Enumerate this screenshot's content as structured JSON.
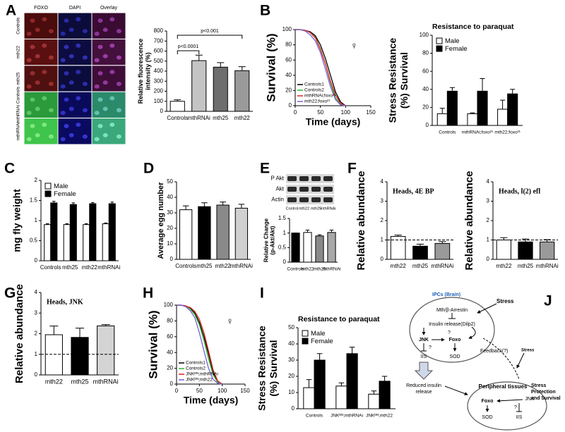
{
  "chart_data": [
    {
      "type": "bar",
      "panel": "A",
      "ylabel": [
        "Relative fluorescence",
        "intensity (%)"
      ],
      "categories": [
        "Controls",
        "mthRNAi",
        "mth25",
        "mth22"
      ],
      "series": [
        {
          "colors": [
            "#ffffff",
            "#c4c4c4",
            "#6e6e6e",
            "#9a9a9a"
          ],
          "values": [
            100,
            505,
            440,
            405
          ],
          "errors": [
            15,
            55,
            45,
            40
          ]
        }
      ],
      "ylim": [
        0,
        800
      ],
      "yticks": [
        0,
        100,
        200,
        300,
        400,
        500,
        600,
        700,
        800
      ],
      "annotations": [
        {
          "text": "p<0.0001",
          "span": [
            "Controls",
            "mthRNAi"
          ]
        },
        {
          "text": "p<0.001",
          "span": [
            "Controls",
            "mth22"
          ]
        }
      ]
    },
    {
      "type": "line",
      "panel": "B",
      "ylabel": "Survival (%)",
      "xlabel": "Time (days)",
      "symbol": "♀",
      "x": [
        0,
        10,
        20,
        30,
        40,
        50,
        60,
        70,
        80,
        90,
        100
      ],
      "series": [
        {
          "name": "Controls1",
          "color": "#000000",
          "values": [
            100,
            100,
            99,
            97,
            92,
            80,
            62,
            40,
            18,
            5,
            0
          ]
        },
        {
          "name": "Controls2",
          "color": "#2eb82e",
          "values": [
            100,
            100,
            99,
            96,
            90,
            75,
            55,
            30,
            10,
            2,
            0
          ]
        },
        {
          "name": "mthRNAi;foxo²¹",
          "color": "#e02020",
          "values": [
            100,
            100,
            99,
            96,
            89,
            74,
            55,
            32,
            14,
            3,
            0
          ]
        },
        {
          "name": "mth22;foxo²¹",
          "color": "#7b5fd6",
          "values": [
            100,
            100,
            98,
            93,
            85,
            70,
            48,
            25,
            8,
            1,
            0
          ]
        }
      ],
      "xlim": [
        0,
        150
      ],
      "xticks": [
        0,
        50,
        100,
        150
      ],
      "ylim": [
        0,
        100
      ],
      "yticks": [
        0,
        20,
        40,
        60,
        80,
        100
      ],
      "legend": "lower left"
    },
    {
      "type": "bar",
      "title": "Resistance to paraquat",
      "ylabel": [
        "Stress Resistance",
        "(%) Survival"
      ],
      "categories": [
        "Controls",
        "mthRNAi;foxo²¹",
        "mth22;foxo²¹"
      ],
      "series": [
        {
          "name": "Male",
          "color": "#ffffff",
          "values": [
            13,
            13,
            18
          ],
          "errors": [
            6,
            1,
            10
          ]
        },
        {
          "name": "Female",
          "color": "#000000",
          "values": [
            38,
            38,
            35
          ],
          "errors": [
            4,
            14,
            5
          ]
        }
      ],
      "ylim": [
        0,
        100
      ],
      "yticks": [
        0,
        20,
        40,
        60,
        80,
        100
      ],
      "legend": "upper left"
    },
    {
      "type": "bar",
      "panel": "C",
      "ylabel": "mg fly weight",
      "categories": [
        "Controls",
        "mth25",
        "mth22",
        "mthRNAi"
      ],
      "series": [
        {
          "name": "Male",
          "color": "#ffffff",
          "values": [
            0.9,
            0.9,
            0.9,
            0.92
          ],
          "errors": [
            0.02,
            0.02,
            0.02,
            0.02
          ]
        },
        {
          "name": "Female",
          "color": "#000000",
          "values": [
            1.44,
            1.4,
            1.42,
            1.42
          ],
          "errors": [
            0.04,
            0.04,
            0.03,
            0.04
          ]
        }
      ],
      "ylim": [
        0,
        2
      ],
      "yticks": [
        0,
        0.5,
        1,
        1.5,
        2
      ],
      "legend": "upper left"
    },
    {
      "type": "bar",
      "panel": "D",
      "ylabel": "Average egg number",
      "categories": [
        "Controls",
        "mth25",
        "mth22",
        "mthRNAi"
      ],
      "series": [
        {
          "colors": [
            "#ffffff",
            "#000000",
            "#8a8a8a",
            "#d0d0d0"
          ],
          "values": [
            32,
            34,
            35,
            33
          ],
          "errors": [
            2.5,
            2.5,
            2,
            2.5
          ]
        }
      ],
      "ylim": [
        0,
        50
      ],
      "yticks": [
        0,
        10,
        20,
        30,
        40,
        50
      ]
    },
    {
      "type": "bar",
      "panel": "E",
      "ylabel": [
        "Relative Change",
        "(p-Akt/Akt)"
      ],
      "categories": [
        "Controls",
        "mth22",
        "mth25",
        "mthRNAi"
      ],
      "series": [
        {
          "colors": [
            "#000000",
            "#ffffff",
            "#8a8a8a",
            "#a8a8a8"
          ],
          "values": [
            1,
            1.02,
            0.9,
            1.02
          ],
          "errors": [
            0,
            0.08,
            0.04,
            0.08
          ]
        }
      ],
      "ylim": [
        0,
        1.5
      ],
      "yticks": [
        0,
        0.5,
        1,
        1.5
      ]
    },
    {
      "type": "bar",
      "panel": "F",
      "title": "Heads, 4E BP",
      "ylabel": "Relative abundance",
      "categories": [
        "mth22",
        "mth25",
        "mthRNAi"
      ],
      "series": [
        {
          "colors": [
            "#ffffff",
            "#000000",
            "#9a9a9a"
          ],
          "values": [
            1.18,
            0.68,
            0.82
          ],
          "errors": [
            0.07,
            0.1,
            0.1
          ]
        }
      ],
      "ylim": [
        0,
        4
      ],
      "yticks": [
        0,
        1,
        2,
        3,
        4
      ],
      "refline": 1
    },
    {
      "type": "bar",
      "title": "Heads, l(2) efl",
      "ylabel": "Relative abundance",
      "categories": [
        "mth22",
        "mth25",
        "mthRNAi"
      ],
      "series": [
        {
          "colors": [
            "#ffffff",
            "#000000",
            "#9a9a9a"
          ],
          "values": [
            1.0,
            0.9,
            0.9
          ],
          "errors": [
            0.12,
            0.15,
            0.12
          ]
        }
      ],
      "ylim": [
        0,
        4
      ],
      "yticks": [
        0,
        1,
        2,
        3,
        4
      ],
      "refline": 1
    },
    {
      "type": "bar",
      "panel": "G",
      "title": "Heads, JNK",
      "ylabel": "Relative abundance",
      "categories": [
        "mth22",
        "mth25",
        "mthRNAi"
      ],
      "series": [
        {
          "colors": [
            "#ffffff",
            "#000000",
            "#d4d4d4"
          ],
          "values": [
            1.95,
            1.82,
            2.38
          ],
          "errors": [
            0.42,
            0.45,
            0.06
          ]
        }
      ],
      "ylim": [
        0,
        4
      ],
      "yticks": [
        0,
        1,
        2,
        3,
        4
      ],
      "refline": 1
    },
    {
      "type": "line",
      "panel": "H",
      "ylabel": "Survival (%)",
      "xlabel": "Time (days)",
      "symbol": "♀",
      "x": [
        0,
        10,
        20,
        30,
        40,
        50,
        60,
        70,
        80,
        90,
        100
      ],
      "series": [
        {
          "name": "Controls1",
          "color": "#000000",
          "values": [
            100,
            100,
            99,
            96,
            90,
            78,
            60,
            38,
            15,
            3,
            0
          ]
        },
        {
          "name": "Controls2",
          "color": "#2eb82e",
          "values": [
            100,
            100,
            99,
            95,
            88,
            75,
            55,
            32,
            12,
            2,
            0
          ]
        },
        {
          "name": "JNKᴰᴺ;mthRNAi",
          "color": "#e02020",
          "values": [
            100,
            100,
            99,
            97,
            92,
            82,
            65,
            42,
            18,
            4,
            0
          ]
        },
        {
          "name": "JNKᴰᴺ;mth22",
          "color": "#7b5fd6",
          "values": [
            100,
            100,
            98,
            93,
            84,
            65,
            42,
            20,
            6,
            1,
            0
          ]
        }
      ],
      "xlim": [
        0,
        150
      ],
      "xticks": [
        0,
        50,
        100,
        150
      ],
      "ylim": [
        0,
        100
      ],
      "yticks": [
        0,
        20,
        40,
        60,
        80,
        100
      ],
      "legend": "lower left"
    },
    {
      "type": "bar",
      "panel": "I",
      "title": "Resistance to paraquat",
      "ylabel": [
        "Stress Resistance",
        "(%) Survival"
      ],
      "categories": [
        "Controls",
        "JNKᴰᴺ;mthRNAi",
        "JNKᴰᴺ;mth22"
      ],
      "series": [
        {
          "name": "Male",
          "color": "#ffffff",
          "values": [
            13,
            14,
            9
          ],
          "errors": [
            5,
            2,
            2
          ]
        },
        {
          "name": "Female",
          "color": "#000000",
          "values": [
            30,
            34,
            17
          ],
          "errors": [
            4,
            4,
            3
          ]
        }
      ],
      "ylim": [
        0,
        50
      ],
      "yticks": [
        0,
        10,
        20,
        30,
        40,
        50
      ],
      "legend": "upper left"
    }
  ],
  "microscopy": {
    "columns": [
      "FOXO",
      "DAPI",
      "Overlay"
    ],
    "rows": [
      "Controls",
      "mth22",
      "mth25",
      "mthRNAi Controls",
      "mthRNAi"
    ]
  },
  "blot": {
    "rows": [
      "P Akt",
      "Akt",
      "Actin"
    ],
    "lanes": [
      "Control",
      "mth22",
      "mth25",
      "mthRNAi"
    ]
  },
  "diagram": {
    "panel": "J",
    "title": "IPCs (Brain)",
    "top": {
      "stress": "Stress",
      "receptor": "Mth/β-Arrestin",
      "insulin": "Insulin release(Dilp2)",
      "jnk": "JNK",
      "foxo": "Foxo",
      "iis": "IIS",
      "sod": "SOD",
      "q1": "?",
      "q2": "?"
    },
    "feedback": "Feedback(?)",
    "stress2": "Stress",
    "reduced": [
      "Reduced insulin",
      "release"
    ],
    "peripheral": {
      "title": "Peripheral tissues",
      "foxo": "Foxo",
      "jnk": "JNK",
      "sod": "SOD",
      "iis": "IIS",
      "q": "?"
    },
    "outcome": [
      "Stress",
      "Protection",
      "and Survival"
    ]
  }
}
